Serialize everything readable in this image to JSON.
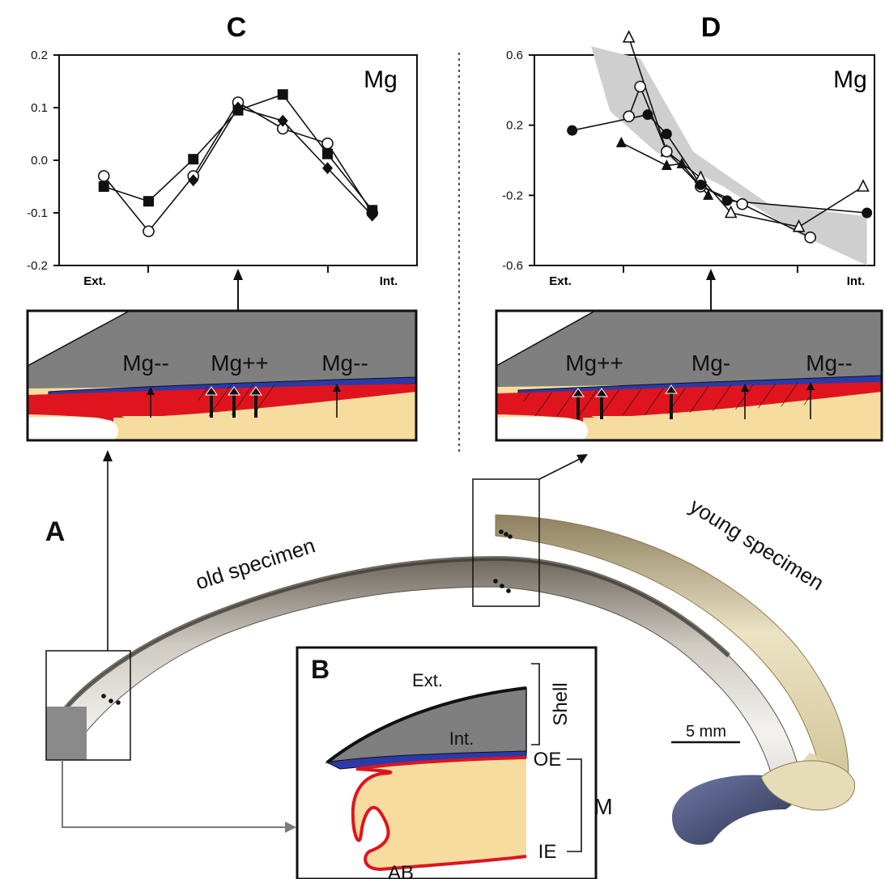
{
  "panels": {
    "a": "A",
    "b": "B",
    "c": "C",
    "d": "D"
  },
  "specimens": {
    "old": "old specimen",
    "young": "young specimen",
    "scale": "5 mm"
  },
  "zoom_c_labels": [
    "Mg--",
    "Mg++",
    "Mg--"
  ],
  "zoom_d_labels": [
    "Mg++",
    "Mg-",
    "Mg--"
  ],
  "diagram_b": {
    "ext": "Ext.",
    "int": "Int.",
    "shell": "Shell",
    "oe": "OE",
    "ie": "IE",
    "m": "M",
    "ab": "AB"
  },
  "colors": {
    "shell": "#7f7f7f",
    "outer_epithelium_layer": "#2b3aa8",
    "mantle_edge": "#e0141e",
    "mantle_tissue": "#f7dca0",
    "envelope": "#cfcfcf"
  },
  "chart_data": [
    {
      "type": "line",
      "panel": "C",
      "annotation": "Mg",
      "x_tick_labels": [
        "Ext.",
        "Int."
      ],
      "ylim": [
        -0.2,
        0.2
      ],
      "y_ticks": [
        "0.2",
        "0.1",
        "0.0",
        "-0.1",
        "-0.2"
      ],
      "grid": false,
      "series": [
        {
          "marker": "open-circle",
          "x": [
            1,
            2,
            3,
            4,
            5,
            6,
            7
          ],
          "y": [
            -0.03,
            -0.135,
            -0.03,
            0.11,
            0.06,
            0.032,
            -0.1
          ]
        },
        {
          "marker": "filled-square",
          "x": [
            1,
            2,
            3,
            4,
            5,
            6,
            7
          ],
          "y": [
            -0.05,
            -0.078,
            0.002,
            0.095,
            0.125,
            0.012,
            -0.095
          ]
        },
        {
          "marker": "filled-diamond",
          "x": [
            3,
            4,
            5,
            6,
            7
          ],
          "y": [
            -0.038,
            0.1,
            0.075,
            -0.015,
            -0.105
          ]
        }
      ],
      "x_range": [
        0,
        8
      ]
    },
    {
      "type": "line",
      "panel": "D",
      "annotation": "Mg",
      "x_tick_labels": [
        "Ext.",
        "Int."
      ],
      "ylim": [
        -0.6,
        0.6
      ],
      "y_ticks": [
        "0.6",
        "0.2",
        "-0.2",
        "-0.6"
      ],
      "grid": false,
      "envelope": [
        [
          1.5,
          0.65
        ],
        [
          2.8,
          0.58
        ],
        [
          4.2,
          0.05
        ],
        [
          6.2,
          -0.25
        ],
        [
          8.8,
          -0.32
        ],
        [
          8.8,
          -0.6
        ],
        [
          7.0,
          -0.42
        ],
        [
          5.0,
          -0.15
        ],
        [
          3.2,
          0.05
        ],
        [
          2.0,
          0.28
        ]
      ],
      "series": [
        {
          "marker": "open-triangle",
          "x": [
            2.5,
            3.5,
            4.4,
            5.2,
            7.0,
            8.7
          ],
          "y": [
            0.7,
            0.05,
            -0.1,
            -0.3,
            -0.38,
            -0.15
          ]
        },
        {
          "marker": "open-circle",
          "x": [
            2.5,
            2.8,
            3.5,
            4.4,
            5.5,
            7.3
          ],
          "y": [
            0.25,
            0.42,
            0.05,
            -0.15,
            -0.25,
            -0.44
          ]
        },
        {
          "marker": "filled-circle",
          "x": [
            1.0,
            3.0,
            3.5,
            4.4,
            5.1,
            8.8
          ],
          "y": [
            0.17,
            0.26,
            0.15,
            -0.14,
            -0.23,
            -0.3
          ]
        },
        {
          "marker": "filled-triangle",
          "x": [
            2.3,
            3.5,
            3.9,
            4.6
          ],
          "y": [
            0.1,
            -0.03,
            -0.02,
            -0.2
          ]
        }
      ],
      "x_range": [
        0,
        9
      ]
    }
  ]
}
